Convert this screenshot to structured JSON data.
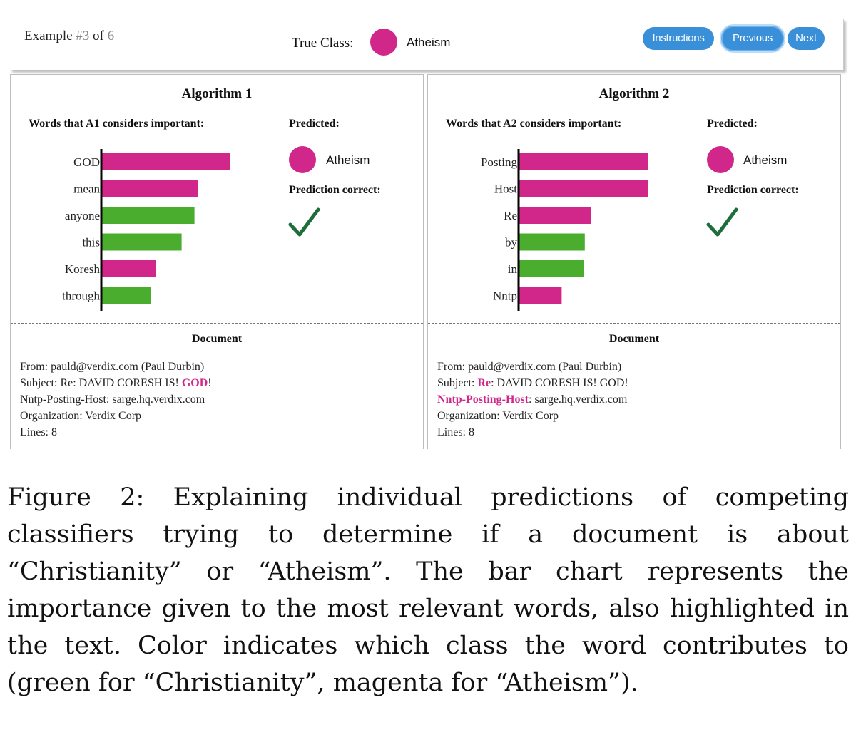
{
  "header": {
    "example_prefix": "Example ",
    "example_num": "#3",
    "example_mid": " of ",
    "example_total": "6",
    "true_class_label": "True Class:",
    "true_class_value": "Atheism",
    "buttons": {
      "instructions": "Instructions",
      "previous": "Previous",
      "next": "Next"
    }
  },
  "colors": {
    "atheism": "#d1278b",
    "christianity": "#4aad2e",
    "button": "#3a90d8",
    "check": "#1e6e3c"
  },
  "algorithms": [
    {
      "title": "Algorithm 1",
      "words_header": "Words that A1 considers important:",
      "predicted_header": "Predicted:",
      "predicted_value": "Atheism",
      "correct_header": "Prediction correct:",
      "document_header": "Document",
      "document_lines": [
        {
          "segments": [
            {
              "text": "From: pauld@verdix.com (Paul Durbin)",
              "hl": false
            }
          ]
        },
        {
          "segments": [
            {
              "text": "Subject: Re: DAVID CORESH IS! ",
              "hl": false
            },
            {
              "text": "GOD",
              "hl": true
            },
            {
              "text": "!",
              "hl": false
            }
          ]
        },
        {
          "segments": [
            {
              "text": "Nntp-Posting-Host: sarge.hq.verdix.com",
              "hl": false
            }
          ]
        },
        {
          "segments": [
            {
              "text": "Organization: Verdix Corp",
              "hl": false
            }
          ]
        },
        {
          "segments": [
            {
              "text": "Lines: 8",
              "hl": false
            }
          ]
        }
      ]
    },
    {
      "title": "Algorithm 2",
      "words_header": "Words that A2 considers important:",
      "predicted_header": "Predicted:",
      "predicted_value": "Atheism",
      "correct_header": "Prediction correct:",
      "document_header": "Document",
      "document_lines": [
        {
          "segments": [
            {
              "text": "From: pauld@verdix.com (Paul Durbin)",
              "hl": false
            }
          ]
        },
        {
          "segments": [
            {
              "text": "Subject: ",
              "hl": false
            },
            {
              "text": "Re",
              "hl": true
            },
            {
              "text": ": DAVID CORESH IS! GOD!",
              "hl": false
            }
          ]
        },
        {
          "segments": [
            {
              "text": "Nntp-Posting-Host",
              "hl": true
            },
            {
              "text": ": sarge.hq.verdix.com",
              "hl": false
            }
          ]
        },
        {
          "segments": [
            {
              "text": "Organization: Verdix Corp",
              "hl": false
            }
          ]
        },
        {
          "segments": [
            {
              "text": "Lines: 8",
              "hl": false
            }
          ]
        }
      ]
    }
  ],
  "chart_data": [
    {
      "type": "bar",
      "orientation": "horizontal",
      "categories": [
        "GOD",
        "mean",
        "anyone",
        "this",
        "Koresh",
        "through"
      ],
      "values": [
        1.0,
        0.75,
        0.72,
        0.62,
        0.42,
        0.38
      ],
      "classes": [
        "Atheism",
        "Atheism",
        "Christianity",
        "Christianity",
        "Atheism",
        "Christianity"
      ],
      "xlim": [
        0,
        1.0
      ]
    },
    {
      "type": "bar",
      "orientation": "horizontal",
      "categories": [
        "Posting",
        "Host",
        "Re",
        "by",
        "in",
        "Nntp"
      ],
      "values": [
        1.0,
        1.0,
        0.56,
        0.51,
        0.5,
        0.33
      ],
      "classes": [
        "Atheism",
        "Atheism",
        "Atheism",
        "Christianity",
        "Christianity",
        "Atheism"
      ],
      "xlim": [
        0,
        1.0
      ]
    }
  ],
  "caption": "Figure 2: Explaining individual predictions of competing classifiers trying to determine if a document is about “Christianity” or “Atheism”. The bar chart represents the importance given to the most relevant words, also highlighted in the text. Color indicates which class the word contributes to (green for “Christianity”, magenta for “Atheism”)."
}
